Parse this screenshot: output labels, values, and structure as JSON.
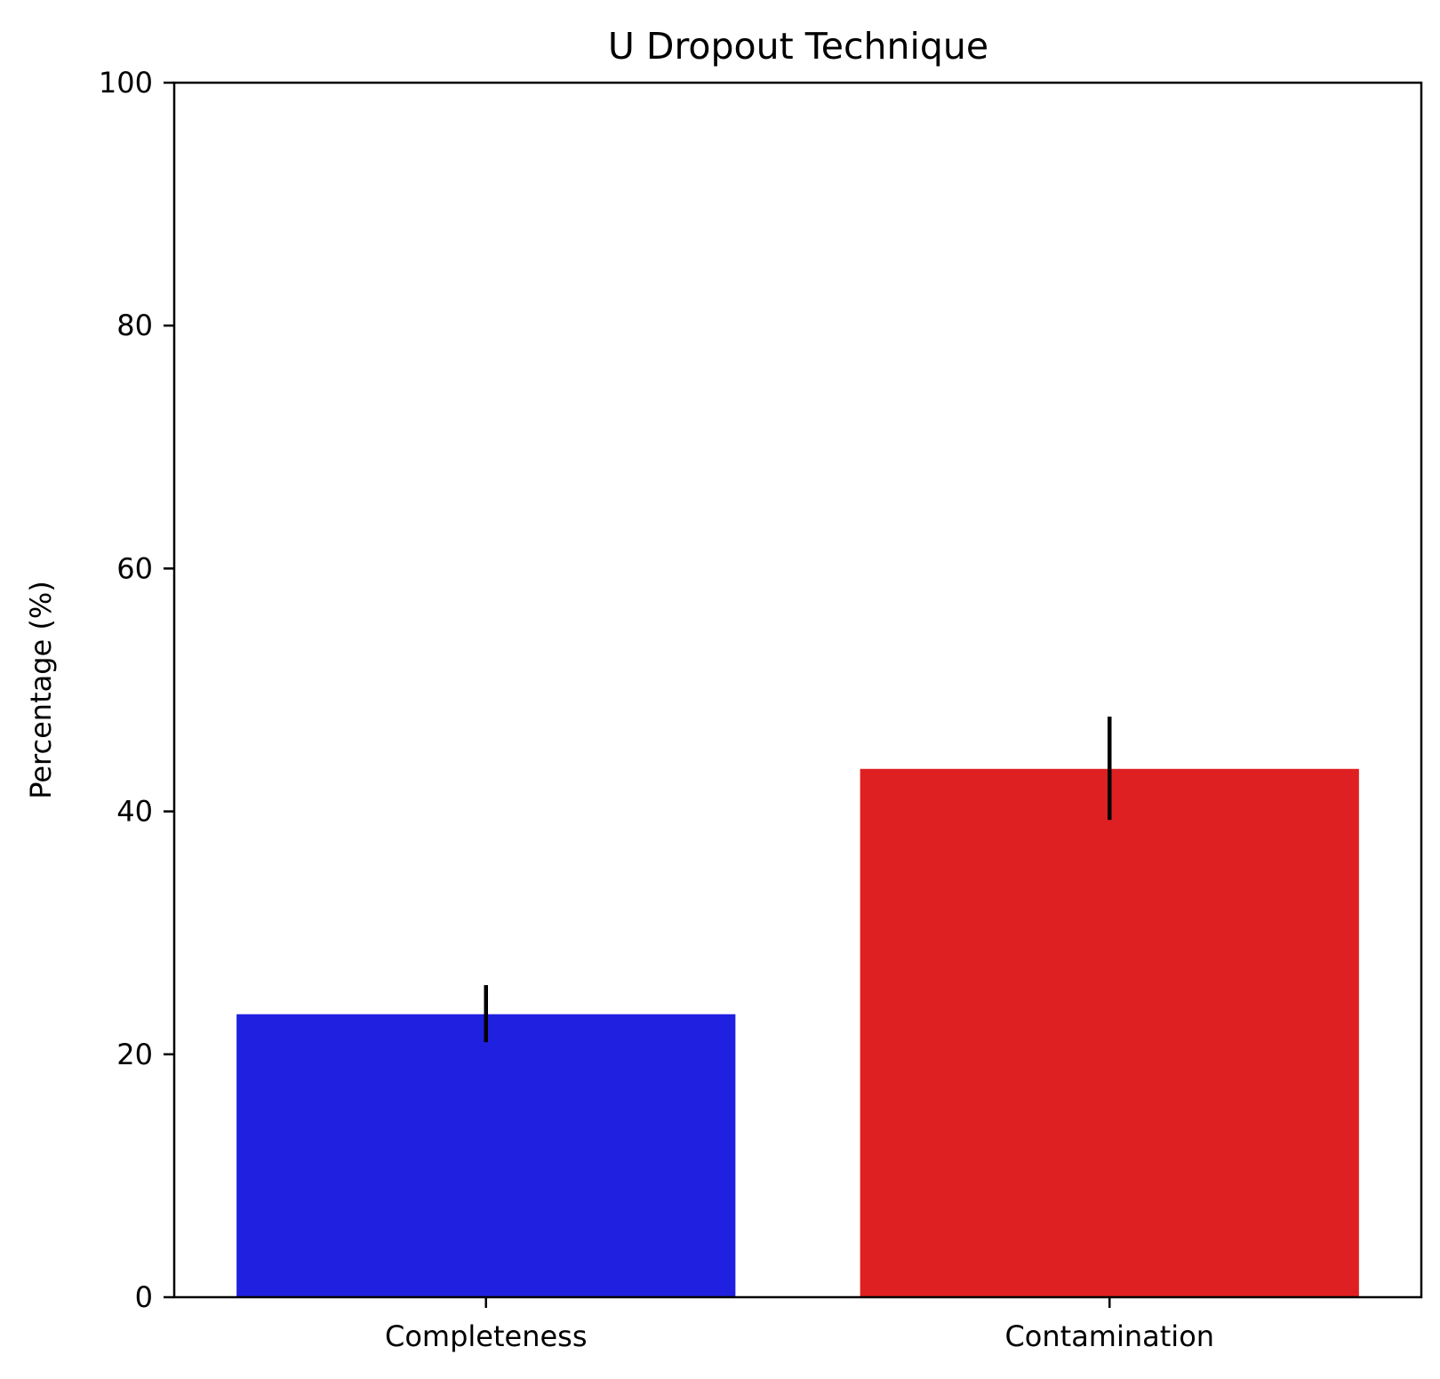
{
  "chart_data": {
    "type": "bar",
    "title": "U Dropout Technique",
    "xlabel": "",
    "ylabel": "Percentage (%)",
    "categories": [
      "Completeness",
      "Contamination"
    ],
    "values": [
      23.3,
      43.5
    ],
    "error_low": [
      21.0,
      39.3
    ],
    "error_high": [
      25.7,
      47.8
    ],
    "colors": [
      "#2020e0",
      "#df2022"
    ],
    "ylim": [
      0,
      100
    ],
    "yticks": [
      0,
      20,
      40,
      60,
      80,
      100
    ],
    "grid": false
  }
}
